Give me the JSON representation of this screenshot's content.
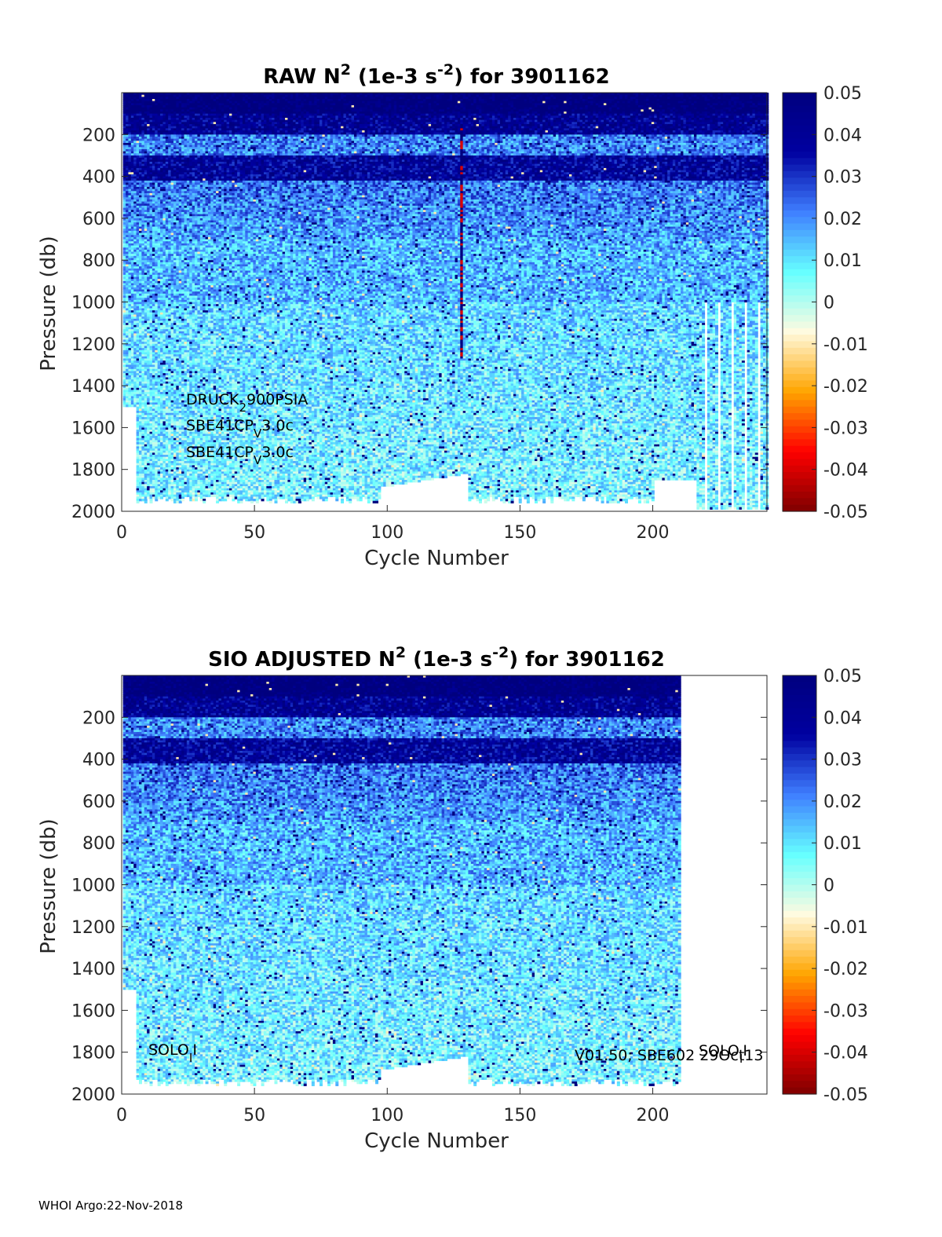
{
  "chart_data": [
    {
      "type": "heatmap",
      "title_parts": [
        "RAW N",
        "2",
        " (1e-3 s",
        "-2",
        ") for 3901162"
      ],
      "xlabel": "Cycle Number",
      "ylabel": "Pressure (db)",
      "xlim": [
        0,
        243
      ],
      "ylim": [
        0,
        2000
      ],
      "y_reversed": true,
      "x_ticks": [
        0,
        50,
        100,
        150,
        200
      ],
      "y_ticks": [
        200,
        400,
        600,
        800,
        1000,
        1200,
        1400,
        1600,
        1800,
        2000
      ],
      "colorbar": {
        "min": -0.05,
        "max": 0.05,
        "ticks": [
          "0.05",
          "0.04",
          "0.03",
          "0.02",
          "0.01",
          "0",
          "-0.01",
          "-0.02",
          "-0.03",
          "-0.04",
          "-0.05"
        ]
      },
      "colormap": [
        "#7f0000",
        "#ff0000",
        "#ffa500",
        "#fffbe0",
        "#66ffff",
        "#3f7fff",
        "#0000a0",
        "#00007f"
      ],
      "annotations": [
        {
          "base": "DRUCK",
          "sub": "2",
          "rest": "900PSIA"
        },
        {
          "base": "SBE41CP",
          "sub": "V",
          "rest": "3.0c"
        },
        {
          "base": "SBE41CP",
          "sub": "V",
          "rest": "3.0c"
        }
      ],
      "last_cycle": 243
    },
    {
      "type": "heatmap",
      "title_parts": [
        "SIO  ADJUSTED N",
        "2",
        " (1e-3 s",
        "-2",
        ") for 3901162"
      ],
      "xlabel": "Cycle Number",
      "ylabel": "Pressure (db)",
      "xlim": [
        0,
        243
      ],
      "ylim": [
        0,
        2000
      ],
      "y_reversed": true,
      "x_ticks": [
        0,
        50,
        100,
        150,
        200
      ],
      "y_ticks": [
        200,
        400,
        600,
        800,
        1000,
        1200,
        1400,
        1600,
        1800,
        2000
      ],
      "colorbar": {
        "min": -0.05,
        "max": 0.05,
        "ticks": [
          "0.05",
          "0.04",
          "0.03",
          "0.02",
          "0.01",
          "0",
          "-0.01",
          "-0.02",
          "-0.03",
          "-0.04",
          "-0.05"
        ]
      },
      "colormap": [
        "#7f0000",
        "#ff0000",
        "#ffa500",
        "#fffbe0",
        "#66ffff",
        "#3f7fff",
        "#0000a0",
        "#00007f"
      ],
      "annotations": [
        {
          "base": "SOLO",
          "sub": "I",
          "rest": "I"
        },
        {
          "base": "V01.50; SBE602 29Oct13",
          "sub": "",
          "rest": ""
        },
        {
          "base": "SOLO",
          "sub": "I",
          "rest": "I"
        }
      ],
      "last_cycle": 210
    }
  ],
  "footer": "WHOI Argo:22-Nov-2018"
}
